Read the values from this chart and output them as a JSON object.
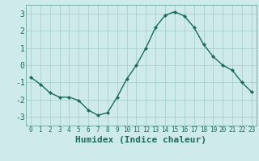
{
  "x": [
    0,
    1,
    2,
    3,
    4,
    5,
    6,
    7,
    8,
    9,
    10,
    11,
    12,
    13,
    14,
    15,
    16,
    17,
    18,
    19,
    20,
    21,
    22,
    23
  ],
  "y": [
    -0.7,
    -1.1,
    -1.6,
    -1.85,
    -1.85,
    -2.05,
    -2.6,
    -2.9,
    -2.75,
    -1.85,
    -0.8,
    0.0,
    1.0,
    2.2,
    2.9,
    3.1,
    2.85,
    2.2,
    1.2,
    0.5,
    0.0,
    -0.3,
    -1.0,
    -1.55
  ],
  "xlabel": "Humidex (Indice chaleur)",
  "line_color": "#1b6b5a",
  "marker": "D",
  "marker_size": 2.2,
  "background_color": "#ceeaea",
  "grid_color": "#aed4d4",
  "ylim": [
    -3.5,
    3.5
  ],
  "xlim": [
    -0.5,
    23.5
  ],
  "yticks": [
    -3,
    -2,
    -1,
    0,
    1,
    2,
    3
  ],
  "xticks": [
    0,
    1,
    2,
    3,
    4,
    5,
    6,
    7,
    8,
    9,
    10,
    11,
    12,
    13,
    14,
    15,
    16,
    17,
    18,
    19,
    20,
    21,
    22,
    23
  ],
  "tick_color": "#1b6b5a",
  "xlabel_fontsize": 8,
  "ytick_fontsize": 7,
  "xtick_fontsize": 5.5,
  "linewidth": 1.0,
  "spine_color": "#5a9a8a"
}
